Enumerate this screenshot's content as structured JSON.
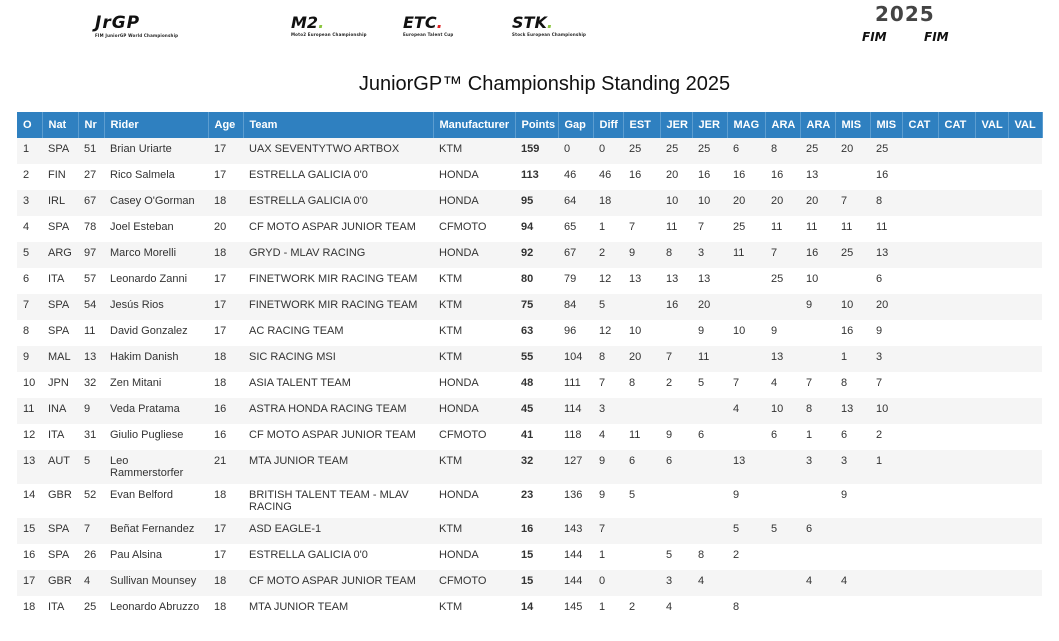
{
  "logos": {
    "jrgp": "JrGP",
    "jrgp_sub": "FIM JuniorGP World Championship",
    "m2": "M2",
    "m2_sub": "Moto2 European Championship",
    "etc": "ETC",
    "etc_sub": "European Talent Cup",
    "stk": "STK",
    "stk_sub": "Stock European Championship",
    "year": "2025",
    "fim1": "FIM",
    "fim2": "FIM"
  },
  "colors": {
    "header_bg": "#2f80c0",
    "stripe": "#f5f5f5"
  },
  "title": "JuniorGP™ Championship Standing 2025",
  "columns": [
    "O",
    "Nat",
    "Nr",
    "Rider",
    "Age",
    "Team",
    "Manufacturer",
    "Points",
    "Gap",
    "Diff",
    "EST",
    "JER",
    "JER",
    "MAG",
    "ARA",
    "ARA",
    "MIS",
    "MIS",
    "CAT",
    "CAT",
    "VAL",
    "VAL"
  ],
  "rows": [
    {
      "pos": "1",
      "nat": "SPA",
      "nr": "51",
      "rider": "Brian Uriarte",
      "age": "17",
      "team": "UAX SEVENTYTWO ARTBOX",
      "manufacturer": "KTM",
      "points": "159",
      "gap": "0",
      "diff": "0",
      "races": [
        "25",
        "25",
        "25",
        "6",
        "8",
        "25",
        "20",
        "25",
        "",
        "",
        "",
        ""
      ]
    },
    {
      "pos": "2",
      "nat": "FIN",
      "nr": "27",
      "rider": "Rico Salmela",
      "age": "17",
      "team": "ESTRELLA GALICIA 0'0",
      "manufacturer": "HONDA",
      "points": "113",
      "gap": "46",
      "diff": "46",
      "races": [
        "16",
        "20",
        "16",
        "16",
        "16",
        "13",
        "",
        "16",
        "",
        "",
        "",
        ""
      ]
    },
    {
      "pos": "3",
      "nat": "IRL",
      "nr": "67",
      "rider": "Casey O'Gorman",
      "age": "18",
      "team": "ESTRELLA GALICIA 0'0",
      "manufacturer": "HONDA",
      "points": "95",
      "gap": "64",
      "diff": "18",
      "races": [
        "",
        "10",
        "10",
        "20",
        "20",
        "20",
        "7",
        "8",
        "",
        "",
        "",
        ""
      ]
    },
    {
      "pos": "4",
      "nat": "SPA",
      "nr": "78",
      "rider": "Joel Esteban",
      "age": "20",
      "team": "CF MOTO ASPAR JUNIOR TEAM",
      "manufacturer": "CFMOTO",
      "points": "94",
      "gap": "65",
      "diff": "1",
      "races": [
        "7",
        "11",
        "7",
        "25",
        "11",
        "11",
        "11",
        "11",
        "",
        "",
        "",
        ""
      ]
    },
    {
      "pos": "5",
      "nat": "ARG",
      "nr": "97",
      "rider": "Marco Morelli",
      "age": "18",
      "team": "GRYD - MLAV RACING",
      "manufacturer": "HONDA",
      "points": "92",
      "gap": "67",
      "diff": "2",
      "races": [
        "9",
        "8",
        "3",
        "11",
        "7",
        "16",
        "25",
        "13",
        "",
        "",
        "",
        ""
      ]
    },
    {
      "pos": "6",
      "nat": "ITA",
      "nr": "57",
      "rider": "Leonardo Zanni",
      "age": "17",
      "team": "FINETWORK MIR RACING TEAM",
      "manufacturer": "KTM",
      "points": "80",
      "gap": "79",
      "diff": "12",
      "races": [
        "13",
        "13",
        "13",
        "",
        "25",
        "10",
        "",
        "6",
        "",
        "",
        "",
        ""
      ]
    },
    {
      "pos": "7",
      "nat": "SPA",
      "nr": "54",
      "rider": "Jesús Rios",
      "age": "17",
      "team": "FINETWORK MIR RACING TEAM",
      "manufacturer": "KTM",
      "points": "75",
      "gap": "84",
      "diff": "5",
      "races": [
        "",
        "16",
        "20",
        "",
        "",
        "9",
        "10",
        "20",
        "",
        "",
        "",
        ""
      ]
    },
    {
      "pos": "8",
      "nat": "SPA",
      "nr": "11",
      "rider": "David Gonzalez",
      "age": "17",
      "team": "AC RACING TEAM",
      "manufacturer": "KTM",
      "points": "63",
      "gap": "96",
      "diff": "12",
      "races": [
        "10",
        "",
        "9",
        "10",
        "9",
        "",
        "16",
        "9",
        "",
        "",
        "",
        ""
      ]
    },
    {
      "pos": "9",
      "nat": "MAL",
      "nr": "13",
      "rider": "Hakim Danish",
      "age": "18",
      "team": "SIC RACING MSI",
      "manufacturer": "KTM",
      "points": "55",
      "gap": "104",
      "diff": "8",
      "races": [
        "20",
        "7",
        "11",
        "",
        "13",
        "",
        "1",
        "3",
        "",
        "",
        "",
        ""
      ]
    },
    {
      "pos": "10",
      "nat": "JPN",
      "nr": "32",
      "rider": "Zen Mitani",
      "age": "18",
      "team": "ASIA TALENT TEAM",
      "manufacturer": "HONDA",
      "points": "48",
      "gap": "111",
      "diff": "7",
      "races": [
        "8",
        "2",
        "5",
        "7",
        "4",
        "7",
        "8",
        "7",
        "",
        "",
        "",
        ""
      ]
    },
    {
      "pos": "11",
      "nat": "INA",
      "nr": "9",
      "rider": "Veda Pratama",
      "age": "16",
      "team": "ASTRA HONDA RACING TEAM",
      "manufacturer": "HONDA",
      "points": "45",
      "gap": "114",
      "diff": "3",
      "races": [
        "",
        "",
        "",
        "4",
        "10",
        "8",
        "13",
        "10",
        "",
        "",
        "",
        ""
      ]
    },
    {
      "pos": "12",
      "nat": "ITA",
      "nr": "31",
      "rider": "Giulio Pugliese",
      "age": "16",
      "team": "CF MOTO ASPAR JUNIOR TEAM",
      "manufacturer": "CFMOTO",
      "points": "41",
      "gap": "118",
      "diff": "4",
      "races": [
        "11",
        "9",
        "6",
        "",
        "6",
        "1",
        "6",
        "2",
        "",
        "",
        "",
        ""
      ]
    },
    {
      "pos": "13",
      "nat": "AUT",
      "nr": "5",
      "rider": "Leo Rammerstorfer",
      "age": "21",
      "team": "MTA JUNIOR TEAM",
      "manufacturer": "KTM",
      "points": "32",
      "gap": "127",
      "diff": "9",
      "races": [
        "6",
        "6",
        "",
        "13",
        "",
        "3",
        "3",
        "1",
        "",
        "",
        "",
        ""
      ]
    },
    {
      "pos": "14",
      "nat": "GBR",
      "nr": "52",
      "rider": "Evan Belford",
      "age": "18",
      "team": "BRITISH TALENT TEAM - MLAV RACING",
      "manufacturer": "HONDA",
      "points": "23",
      "gap": "136",
      "diff": "9",
      "races": [
        "5",
        "",
        "",
        "9",
        "",
        "",
        "9",
        "",
        "",
        "",
        "",
        ""
      ]
    },
    {
      "pos": "15",
      "nat": "SPA",
      "nr": "7",
      "rider": "Beñat Fernandez",
      "age": "17",
      "team": "ASD EAGLE-1",
      "manufacturer": "KTM",
      "points": "16",
      "gap": "143",
      "diff": "7",
      "races": [
        "",
        "",
        "",
        "5",
        "5",
        "6",
        "",
        "",
        "",
        "",
        "",
        ""
      ]
    },
    {
      "pos": "16",
      "nat": "SPA",
      "nr": "26",
      "rider": "Pau Alsina",
      "age": "17",
      "team": "ESTRELLA GALICIA 0'0",
      "manufacturer": "HONDA",
      "points": "15",
      "gap": "144",
      "diff": "1",
      "races": [
        "",
        "5",
        "8",
        "2",
        "",
        "",
        "",
        "",
        "",
        "",
        "",
        ""
      ]
    },
    {
      "pos": "17",
      "nat": "GBR",
      "nr": "4",
      "rider": "Sullivan Mounsey",
      "age": "18",
      "team": "CF MOTO ASPAR JUNIOR TEAM",
      "manufacturer": "CFMOTO",
      "points": "15",
      "gap": "144",
      "diff": "0",
      "races": [
        "",
        "3",
        "4",
        "",
        "",
        "4",
        "4",
        "",
        "",
        "",
        "",
        ""
      ]
    },
    {
      "pos": "18",
      "nat": "ITA",
      "nr": "25",
      "rider": "Leonardo Abruzzo",
      "age": "18",
      "team": "MTA JUNIOR TEAM",
      "manufacturer": "KTM",
      "points": "14",
      "gap": "145",
      "diff": "1",
      "races": [
        "2",
        "4",
        "",
        "8",
        "",
        "",
        "",
        "",
        "",
        "",
        "",
        ""
      ]
    }
  ]
}
